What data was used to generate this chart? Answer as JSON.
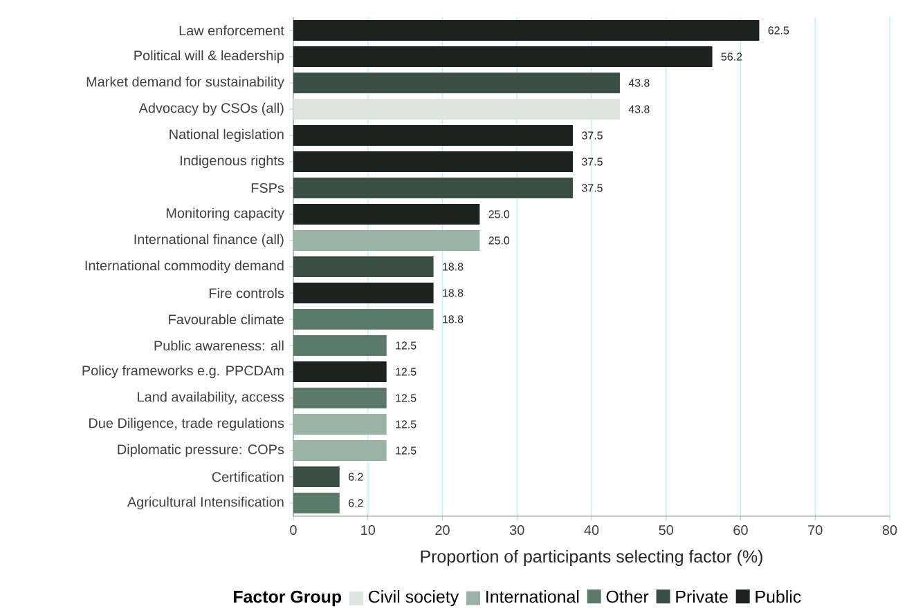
{
  "chart_data": {
    "type": "bar",
    "orientation": "horizontal",
    "xlabel": "Proportion of participants selecting factor (%)",
    "legend_title": "Factor Group",
    "categories": [
      "Law enforcement",
      "Political will & leadership",
      "Market demand for sustainability",
      "Advocacy by CSOs (all)",
      "National legislation",
      "Indigenous rights",
      "FSPs",
      "Monitoring capacity",
      "International finance (all)",
      "International commodity demand",
      "Fire controls",
      "Favourable climate",
      "Public awareness: all",
      "Policy frameworks e.g. PPCDAm",
      "Land availability, access",
      "Due Diligence, trade regulations",
      "Diplomatic pressure: COPs",
      "Certification",
      "Agricultural Intensification"
    ],
    "series": [
      {
        "name": "Civil society",
        "color": "#dde5df",
        "values": [
          null,
          null,
          null,
          43.8,
          null,
          null,
          null,
          null,
          null,
          null,
          null,
          null,
          null,
          null,
          null,
          null,
          null,
          null,
          null
        ],
        "value_labels": [
          null,
          null,
          null,
          "43.8",
          null,
          null,
          null,
          null,
          null,
          null,
          null,
          null,
          null,
          null,
          null,
          null,
          null,
          null,
          null
        ]
      },
      {
        "name": "International",
        "color": "#9bb3a5",
        "values": [
          null,
          null,
          null,
          null,
          null,
          null,
          null,
          null,
          25.0,
          null,
          null,
          null,
          null,
          null,
          null,
          12.5,
          12.5,
          null,
          null
        ],
        "value_labels": [
          null,
          null,
          null,
          null,
          null,
          null,
          null,
          null,
          "25.0",
          null,
          null,
          null,
          null,
          null,
          null,
          "12.5",
          "12.5",
          null,
          null
        ]
      },
      {
        "name": "Other",
        "color": "#5b7a69",
        "values": [
          null,
          null,
          null,
          null,
          null,
          null,
          null,
          null,
          null,
          null,
          null,
          18.8,
          12.5,
          null,
          12.5,
          null,
          null,
          null,
          6.2
        ],
        "value_labels": [
          null,
          null,
          null,
          null,
          null,
          null,
          null,
          null,
          null,
          null,
          null,
          "18.8",
          "12.5",
          null,
          "12.5",
          null,
          null,
          null,
          "6.2"
        ]
      },
      {
        "name": "Private",
        "color": "#3a4e43",
        "values": [
          null,
          null,
          43.8,
          null,
          null,
          null,
          37.5,
          null,
          null,
          18.8,
          null,
          null,
          null,
          null,
          null,
          null,
          null,
          6.2,
          null
        ],
        "value_labels": [
          null,
          null,
          "43.8",
          null,
          null,
          null,
          "37.5",
          null,
          null,
          "18.8",
          null,
          null,
          null,
          null,
          null,
          null,
          null,
          "6.2",
          null
        ]
      },
      {
        "name": "Public",
        "color": "#1c231f",
        "values": [
          62.5,
          56.2,
          null,
          null,
          37.5,
          37.5,
          null,
          25.0,
          null,
          null,
          18.8,
          null,
          null,
          12.5,
          null,
          null,
          null,
          null,
          null
        ],
        "value_labels": [
          "62.5",
          "56.2",
          null,
          null,
          "37.5",
          "37.5",
          null,
          "25.0",
          null,
          null,
          "18.8",
          null,
          null,
          "12.5",
          null,
          null,
          null,
          null,
          null
        ]
      }
    ],
    "xlim": [
      0,
      80
    ],
    "xticks": [
      0,
      10,
      20,
      30,
      40,
      50,
      60,
      70,
      80
    ],
    "grid": "x",
    "legend": "bottom"
  }
}
